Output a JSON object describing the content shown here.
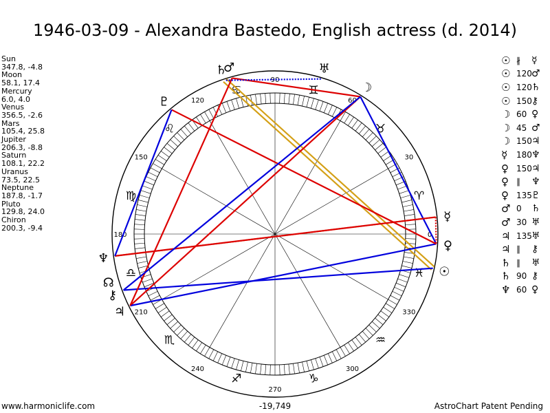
{
  "title": "1946-03-09 - Alexandra Bastedo, English actress (d. 2014)",
  "positions": [
    {
      "name": "Sun",
      "value": "347.8, -4.8"
    },
    {
      "name": "Moon",
      "value": "58.1, 17.4"
    },
    {
      "name": "Mercury",
      "value": "6.0, 4.0"
    },
    {
      "name": "Venus",
      "value": "356.5, -2.6"
    },
    {
      "name": "Mars",
      "value": "105.4, 25.8"
    },
    {
      "name": "Jupiter",
      "value": "206.3, -8.8"
    },
    {
      "name": "Saturn",
      "value": "108.1, 22.2"
    },
    {
      "name": "Uranus",
      "value": "73.5, 22.5"
    },
    {
      "name": "Neptune",
      "value": "187.8, -1.7"
    },
    {
      "name": "Pluto",
      "value": "129.8, 24.0"
    },
    {
      "name": "Chiron",
      "value": "200.3, -9.4"
    }
  ],
  "aspects": [
    {
      "a": "☉",
      "asp": "∦",
      "b": "☿"
    },
    {
      "a": "☉",
      "asp": "120",
      "b": "♂"
    },
    {
      "a": "☉",
      "asp": "120",
      "b": "♄"
    },
    {
      "a": "☉",
      "asp": "150",
      "b": "⚷"
    },
    {
      "a": "☽",
      "asp": "60",
      "b": "♀"
    },
    {
      "a": "☽",
      "asp": "45",
      "b": "♂"
    },
    {
      "a": "☽",
      "asp": "150",
      "b": "♃"
    },
    {
      "a": "☿",
      "asp": "180",
      "b": "♆"
    },
    {
      "a": "♀",
      "asp": "150",
      "b": "♃"
    },
    {
      "a": "♀",
      "asp": "∥",
      "b": "♆"
    },
    {
      "a": "♀",
      "asp": "135",
      "b": "♇"
    },
    {
      "a": "♂",
      "asp": "0",
      "b": "♄"
    },
    {
      "a": "♂",
      "asp": "30",
      "b": "♅"
    },
    {
      "a": "♃",
      "asp": "135",
      "b": "♅"
    },
    {
      "a": "♃",
      "asp": "∥",
      "b": "⚷"
    },
    {
      "a": "♄",
      "asp": "∥",
      "b": "♅"
    },
    {
      "a": "♄",
      "asp": "90",
      "b": "⚷"
    },
    {
      "a": "♆",
      "asp": "60",
      "b": "♀"
    }
  ],
  "degree_labels": [
    "0",
    "30",
    "60",
    "90",
    "120",
    "150",
    "180",
    "210",
    "240",
    "270",
    "300",
    "330"
  ],
  "signs": [
    "♈",
    "♉",
    "♊",
    "♋",
    "♌",
    "♍",
    "♎",
    "♏",
    "♐",
    "♑",
    "♒",
    "♓"
  ],
  "bodies": [
    {
      "glyph": "☉",
      "lon": 347.8
    },
    {
      "glyph": "☽",
      "lon": 58.1
    },
    {
      "glyph": "☿",
      "lon": 6.0
    },
    {
      "glyph": "♀",
      "lon": 356.5
    },
    {
      "glyph": "♂",
      "lon": 105.4
    },
    {
      "glyph": "♃",
      "lon": 206.3
    },
    {
      "glyph": "♄",
      "lon": 108.1
    },
    {
      "glyph": "♅",
      "lon": 73.5
    },
    {
      "glyph": "♆",
      "lon": 187.8
    },
    {
      "glyph": "♇",
      "lon": 129.8
    },
    {
      "glyph": "⚷",
      "lon": 200.3
    },
    {
      "glyph": "☊",
      "lon": 196.0
    }
  ],
  "aspect_lines": [
    {
      "from": 347.8,
      "to": 108.1,
      "color": "#d4a017",
      "style": "double"
    },
    {
      "from": 6.0,
      "to": 187.8,
      "color": "#d4a017",
      "style": "dotted"
    },
    {
      "from": 347.8,
      "to": 200.3,
      "color": "#0000dd",
      "style": "solid"
    },
    {
      "from": 58.1,
      "to": 356.5,
      "color": "#0000dd",
      "style": "solid"
    },
    {
      "from": 58.1,
      "to": 105.4,
      "color": "#dd0000",
      "style": "solid"
    },
    {
      "from": 58.1,
      "to": 206.3,
      "color": "#dd0000",
      "style": "solid"
    },
    {
      "from": 6.0,
      "to": 187.8,
      "color": "#dd0000",
      "style": "solid"
    },
    {
      "from": 356.5,
      "to": 206.3,
      "color": "#0000dd",
      "style": "solid"
    },
    {
      "from": 356.5,
      "to": 129.8,
      "color": "#dd0000",
      "style": "solid"
    },
    {
      "from": 105.4,
      "to": 206.3,
      "color": "#dd0000",
      "style": "solid"
    },
    {
      "from": 73.5,
      "to": 108.1,
      "color": "#0000dd",
      "style": "dotted"
    },
    {
      "from": 129.8,
      "to": 187.8,
      "color": "#0000dd",
      "style": "solid"
    },
    {
      "from": 58.1,
      "to": 200.3,
      "color": "#0000dd",
      "style": "solid"
    },
    {
      "from": 6.0,
      "to": 356.5,
      "color": "#dd0000",
      "style": "dotted"
    }
  ],
  "footer": {
    "left": "www.harmoniclife.com",
    "middle": "-19,749",
    "right": "AstroChart Patent Pending"
  }
}
